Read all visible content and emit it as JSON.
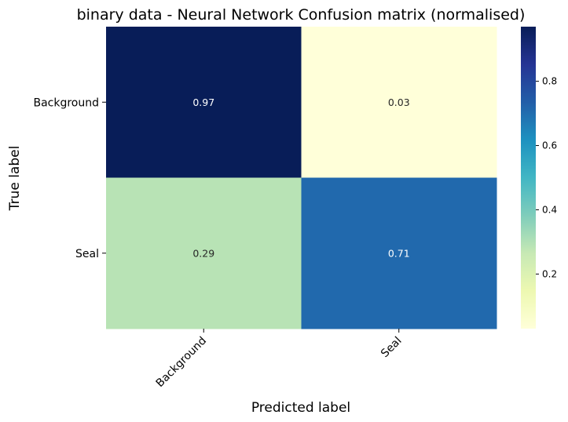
{
  "chart_data": {
    "type": "heatmap",
    "title": "binary data - Neural Network Confusion matrix (normalised)",
    "xlabel": "Predicted label",
    "ylabel": "True label",
    "x_categories": [
      "Background",
      "Seal"
    ],
    "y_categories": [
      "Background",
      "Seal"
    ],
    "values": [
      [
        0.97,
        0.03
      ],
      [
        0.29,
        0.71
      ]
    ],
    "annotations": [
      [
        "0.97",
        "0.03"
      ],
      [
        "0.29",
        "0.71"
      ]
    ],
    "colormap": "YlGnBu",
    "colorbar": {
      "range": [
        0.03,
        0.97
      ],
      "ticks": [
        0.2,
        0.4,
        0.6,
        0.8
      ],
      "tick_labels": [
        "0.2",
        "0.4",
        "0.6",
        "0.8"
      ]
    },
    "grid": false,
    "legend": "colorbar-right"
  }
}
